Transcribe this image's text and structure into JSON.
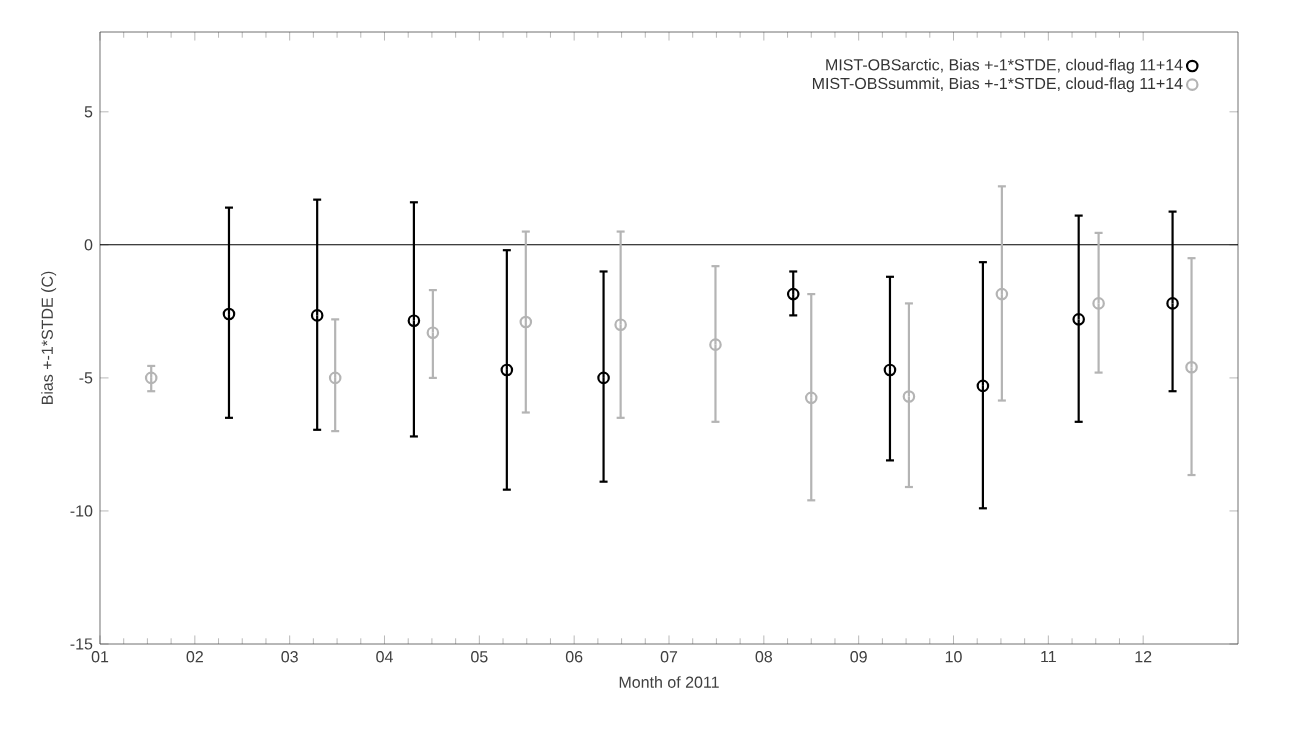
{
  "chart_data": {
    "type": "scatter",
    "xlabel": "Month of 2011",
    "ylabel": "Bias +-1*STDE (C)",
    "xlim": [
      1,
      13
    ],
    "ylim": [
      -15,
      8
    ],
    "xticks": [
      {
        "value": 1,
        "label": "01"
      },
      {
        "value": 2,
        "label": "02"
      },
      {
        "value": 3,
        "label": "03"
      },
      {
        "value": 4,
        "label": "04"
      },
      {
        "value": 5,
        "label": "05"
      },
      {
        "value": 6,
        "label": "06"
      },
      {
        "value": 7,
        "label": "07"
      },
      {
        "value": 8,
        "label": "08"
      },
      {
        "value": 9,
        "label": "09"
      },
      {
        "value": 10,
        "label": "10"
      },
      {
        "value": 11,
        "label": "11"
      },
      {
        "value": 12,
        "label": "12"
      }
    ],
    "yticks": [
      -15,
      -10,
      -5,
      0,
      5
    ],
    "marker": "circle",
    "legend": "top right",
    "grid": false,
    "ref_lines": [
      {
        "axis": "y",
        "value": 0,
        "color": "#000000"
      }
    ],
    "series": [
      {
        "name": "MIST-OBSarctic,    Bias +-1*STDE, cloud-flag 11+14",
        "color": "#000000",
        "x": [
          2.36,
          3.29,
          4.31,
          5.29,
          6.31,
          8.31,
          9.33,
          10.31,
          11.32,
          12.31
        ],
        "values": [
          -2.6,
          -2.65,
          -2.85,
          -4.7,
          -5.0,
          -1.85,
          -4.7,
          -5.3,
          -2.8,
          -2.2
        ],
        "errors": [
          [
            -6.5,
            1.4
          ],
          [
            -6.95,
            1.7
          ],
          [
            -7.2,
            1.6
          ],
          [
            -9.2,
            -0.2
          ],
          [
            -8.9,
            -1.0
          ],
          [
            -2.65,
            -1.0
          ],
          [
            -8.1,
            -1.2
          ],
          [
            -9.9,
            -0.65
          ],
          [
            -6.65,
            1.1
          ],
          [
            -5.5,
            1.25
          ]
        ]
      },
      {
        "name": "MIST-OBSsummit, Bias +-1*STDE, cloud-flag 11+14",
        "color": "#b4b4b4",
        "x": [
          1.54,
          3.48,
          4.51,
          5.49,
          6.49,
          7.49,
          8.5,
          9.53,
          10.51,
          11.53,
          12.51
        ],
        "values": [
          -5.0,
          -5.0,
          -3.3,
          -2.9,
          -3.0,
          -3.75,
          -5.75,
          -5.7,
          -1.85,
          -2.2,
          -4.6
        ],
        "errors": [
          [
            -5.5,
            -4.55
          ],
          [
            -7.0,
            -2.8
          ],
          [
            -5.0,
            -1.7
          ],
          [
            -6.3,
            0.5
          ],
          [
            -6.5,
            0.5
          ],
          [
            -6.65,
            -0.8
          ],
          [
            -9.6,
            -1.85
          ],
          [
            -9.1,
            -2.2
          ],
          [
            -5.85,
            2.2
          ],
          [
            -4.8,
            0.45
          ],
          [
            -8.65,
            -0.5
          ]
        ]
      }
    ]
  }
}
